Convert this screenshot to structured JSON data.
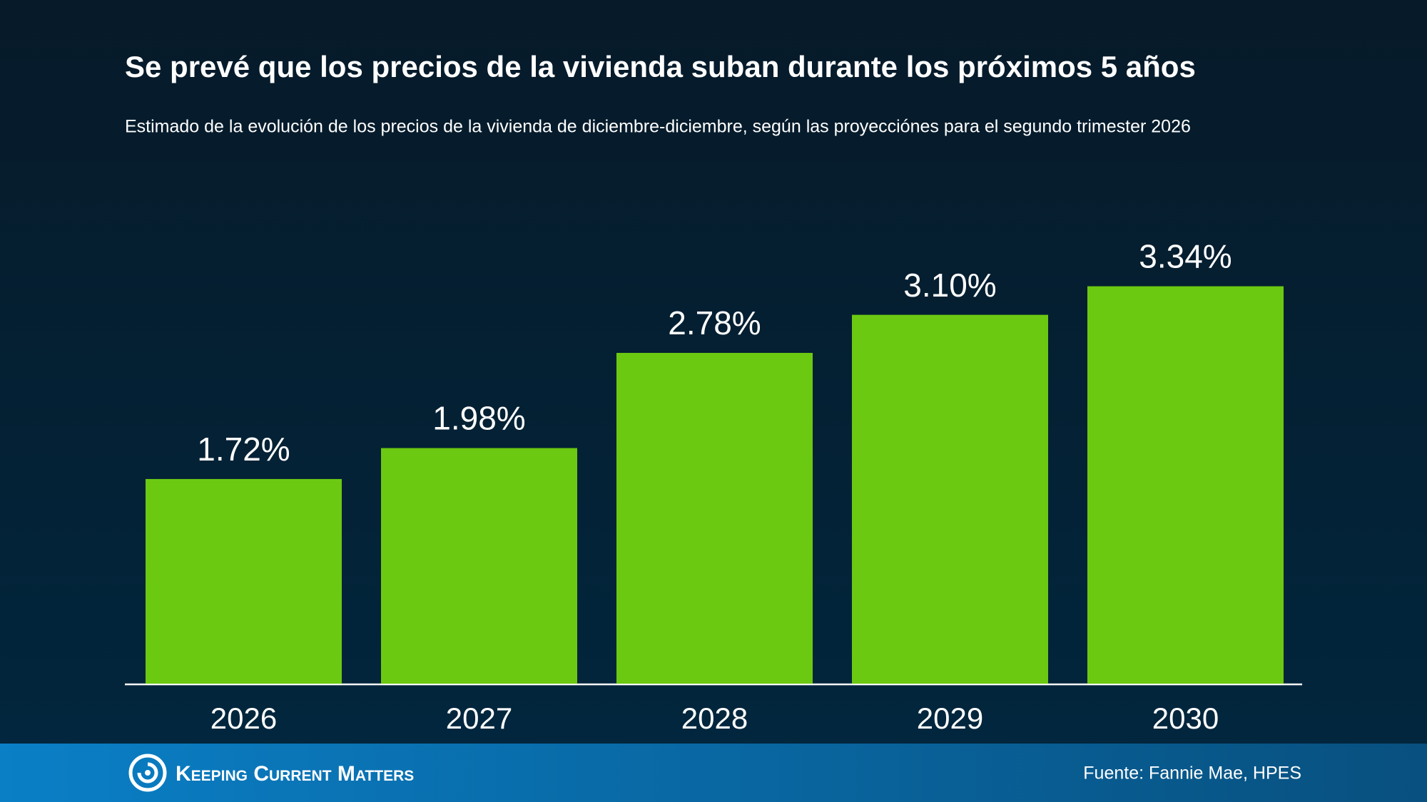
{
  "chart_data": {
    "type": "bar",
    "title": "Se prevé que los precios de la vivienda suban durante los próximos 5 años",
    "subtitle": "Estimado de la evolución de los precios de la vivienda de diciembre-diciembre, según las proyecciónes para el segundo trimester 2026",
    "categories": [
      "2026",
      "2027",
      "2028",
      "2029",
      "2030"
    ],
    "values": [
      1.72,
      1.98,
      2.78,
      3.1,
      3.34
    ],
    "value_labels": [
      "1.72%",
      "1.98%",
      "2.78%",
      "3.10%",
      "3.34%"
    ],
    "color": "#6cc911"
  },
  "footer": {
    "brand": "Keeping Current Matters",
    "source": "Fuente: Fannie Mae, HPES"
  }
}
